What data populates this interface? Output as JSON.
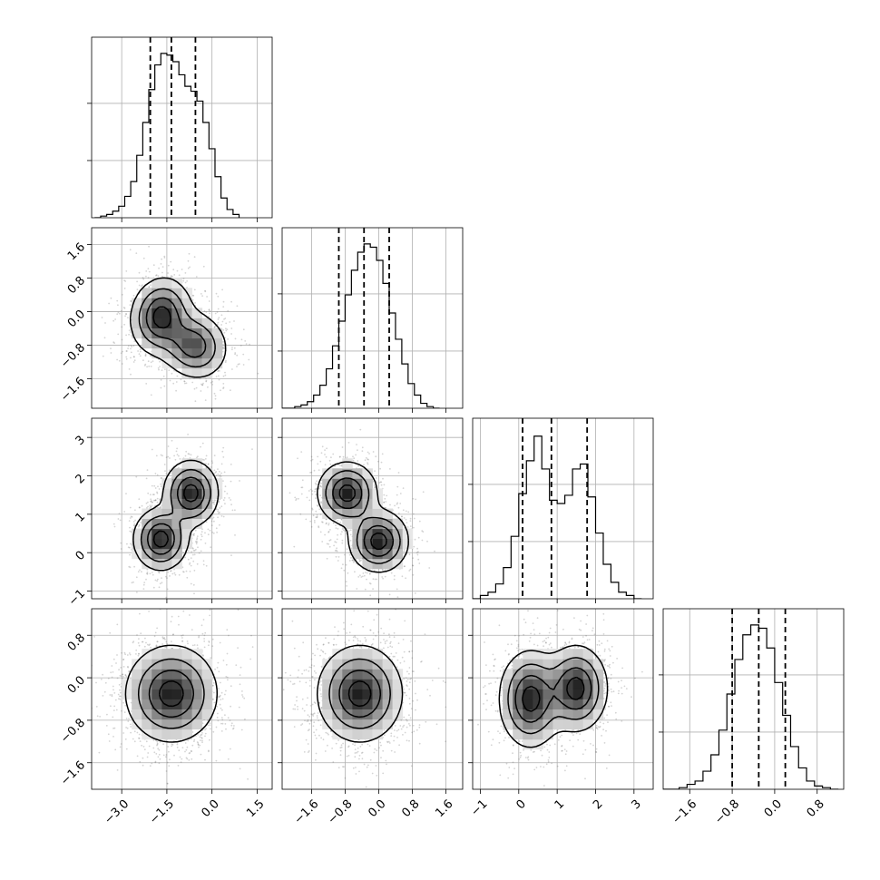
{
  "chart_data": {
    "type": "corner",
    "title": "",
    "grid": true,
    "params": [
      {
        "xlim": [
          -4.0,
          2.0
        ],
        "ticks": [
          -3.0,
          -1.5,
          0.0,
          1.5
        ],
        "tick_labels": [
          "−3.0",
          "−1.5",
          "0.0",
          "1.5"
        ],
        "quantiles": [
          -2.05,
          -1.35,
          -0.55
        ]
      },
      {
        "xlim": [
          -2.3,
          2.0
        ],
        "ticks": [
          -1.6,
          -0.8,
          0.0,
          0.8,
          1.6
        ],
        "tick_labels": [
          "−1.6",
          "−0.8",
          "0.0",
          "0.8",
          "1.6"
        ],
        "quantiles": [
          -0.95,
          -0.35,
          0.25
        ]
      },
      {
        "xlim": [
          -1.2,
          3.5
        ],
        "ticks": [
          -1,
          0,
          1,
          2,
          3
        ],
        "tick_labels": [
          "−1",
          "0",
          "1",
          "2",
          "3"
        ],
        "quantiles": [
          0.1,
          0.85,
          1.78
        ]
      },
      {
        "xlim": [
          -2.1,
          1.3
        ],
        "ticks": [
          -1.6,
          -0.8,
          0.0,
          0.8
        ],
        "tick_labels": [
          "−1.6",
          "−0.8",
          "0.0",
          "0.8"
        ],
        "quantiles": [
          -0.8,
          -0.3,
          0.2
        ]
      }
    ],
    "diagonal_histograms": [
      {
        "bin_edges": [
          -3.9,
          -3.7,
          -3.5,
          -3.3,
          -3.1,
          -2.9,
          -2.7,
          -2.5,
          -2.3,
          -2.1,
          -1.9,
          -1.7,
          -1.5,
          -1.3,
          -1.1,
          -0.9,
          -0.7,
          -0.5,
          -0.3,
          -0.1,
          0.1,
          0.3,
          0.5,
          0.7,
          0.9
        ],
        "counts": [
          0.0,
          0.01,
          0.02,
          0.04,
          0.07,
          0.13,
          0.22,
          0.38,
          0.58,
          0.78,
          0.93,
          1.0,
          0.99,
          0.95,
          0.87,
          0.8,
          0.77,
          0.71,
          0.58,
          0.42,
          0.25,
          0.12,
          0.05,
          0.02
        ]
      },
      {
        "bin_edges": [
          -2.3,
          -2.15,
          -2.0,
          -1.85,
          -1.7,
          -1.55,
          -1.4,
          -1.25,
          -1.1,
          -0.95,
          -0.8,
          -0.65,
          -0.5,
          -0.35,
          -0.2,
          -0.05,
          0.1,
          0.25,
          0.4,
          0.55,
          0.7,
          0.85,
          1.0,
          1.15,
          1.3,
          1.45
        ],
        "counts": [
          0.0,
          0.0,
          0.01,
          0.02,
          0.04,
          0.08,
          0.14,
          0.24,
          0.38,
          0.53,
          0.69,
          0.84,
          0.95,
          1.0,
          0.98,
          0.9,
          0.76,
          0.58,
          0.42,
          0.27,
          0.15,
          0.08,
          0.03,
          0.01,
          0.0
        ]
      },
      {
        "bin_edges": [
          -1.2,
          -1.0,
          -0.8,
          -0.6,
          -0.4,
          -0.2,
          0.0,
          0.2,
          0.4,
          0.6,
          0.8,
          1.0,
          1.2,
          1.4,
          1.6,
          1.8,
          2.0,
          2.2,
          2.4,
          2.6,
          2.8,
          3.0,
          3.2
        ],
        "counts": [
          0.0,
          0.02,
          0.04,
          0.09,
          0.19,
          0.38,
          0.64,
          0.84,
          0.99,
          0.79,
          0.6,
          0.58,
          0.63,
          0.79,
          0.82,
          0.62,
          0.4,
          0.21,
          0.1,
          0.04,
          0.02,
          0.0
        ]
      },
      {
        "bin_edges": [
          -2.1,
          -1.95,
          -1.8,
          -1.65,
          -1.5,
          -1.35,
          -1.2,
          -1.05,
          -0.9,
          -0.75,
          -0.6,
          -0.45,
          -0.3,
          -0.15,
          0.0,
          0.15,
          0.3,
          0.45,
          0.6,
          0.75,
          0.9,
          1.05,
          1.2
        ],
        "counts": [
          0.0,
          0.0,
          0.01,
          0.03,
          0.05,
          0.11,
          0.21,
          0.36,
          0.58,
          0.79,
          0.94,
          1.0,
          0.98,
          0.86,
          0.65,
          0.45,
          0.26,
          0.13,
          0.05,
          0.02,
          0.01,
          0.0
        ]
      }
    ],
    "joint_modes": [
      {
        "params": [
          0,
          1
        ],
        "components": [
          {
            "cx": -1.7,
            "cy": -0.1,
            "sx": 0.5,
            "sy": 0.45,
            "rho": 0.1,
            "w": 0.55
          },
          {
            "cx": -0.6,
            "cy": -0.8,
            "sx": 0.55,
            "sy": 0.4,
            "rho": -0.1,
            "w": 0.45
          }
        ]
      },
      {
        "params": [
          0,
          2
        ],
        "components": [
          {
            "cx": -1.7,
            "cy": 0.35,
            "sx": 0.45,
            "sy": 0.4,
            "rho": 0.0,
            "w": 0.5
          },
          {
            "cx": -0.7,
            "cy": 1.55,
            "sx": 0.45,
            "sy": 0.42,
            "rho": 0.0,
            "w": 0.5
          }
        ]
      },
      {
        "params": [
          1,
          2
        ],
        "components": [
          {
            "cx": -0.75,
            "cy": 1.55,
            "sx": 0.35,
            "sy": 0.4,
            "rho": 0.0,
            "w": 0.5
          },
          {
            "cx": 0.0,
            "cy": 0.3,
            "sx": 0.35,
            "sy": 0.4,
            "rho": 0.0,
            "w": 0.5
          }
        ]
      },
      {
        "params": [
          0,
          3
        ],
        "components": [
          {
            "cx": -1.35,
            "cy": -0.3,
            "sx": 0.75,
            "sy": 0.45,
            "rho": 0.0,
            "w": 1.0
          }
        ]
      },
      {
        "params": [
          1,
          3
        ],
        "components": [
          {
            "cx": -0.45,
            "cy": -0.3,
            "sx": 0.5,
            "sy": 0.45,
            "rho": 0.0,
            "w": 1.0
          }
        ]
      },
      {
        "params": [
          2,
          3
        ],
        "components": [
          {
            "cx": 0.3,
            "cy": -0.4,
            "sx": 0.4,
            "sy": 0.45,
            "rho": 0.0,
            "w": 0.5
          },
          {
            "cx": 1.5,
            "cy": -0.2,
            "sx": 0.4,
            "sy": 0.4,
            "rho": 0.0,
            "w": 0.5
          }
        ]
      }
    ]
  }
}
